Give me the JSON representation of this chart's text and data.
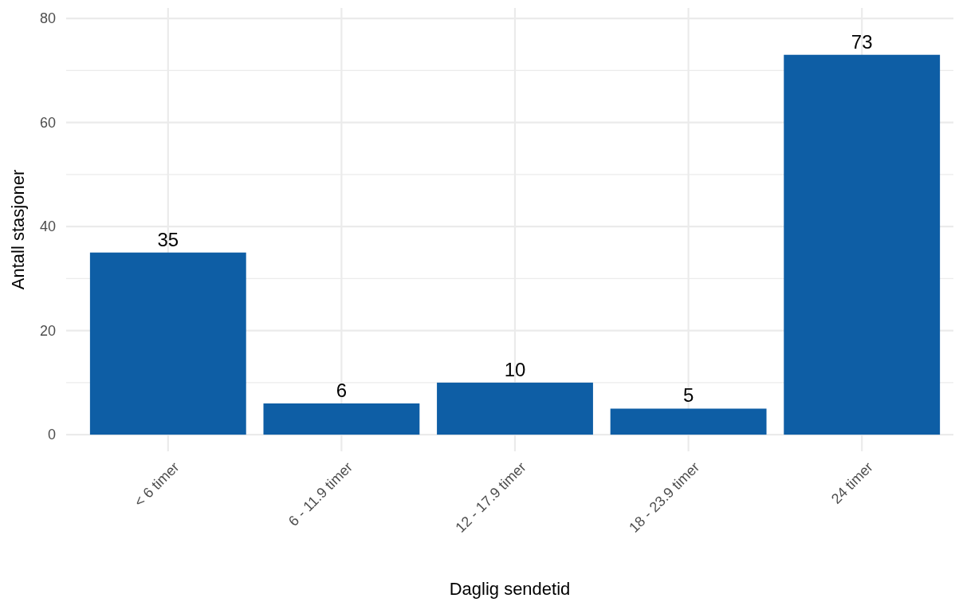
{
  "chart_data": {
    "type": "bar",
    "xlabel": "Daglig sendetid",
    "ylabel": "Antall stasjoner",
    "categories": [
      "< 6 timer",
      "6 - 11.9 timer",
      "12 - 17.9 timer",
      "18 - 23.9 timer",
      "24 timer"
    ],
    "values": [
      35,
      6,
      10,
      5,
      73
    ],
    "color": "#0e5ea5",
    "ylim": [
      -3.2,
      82
    ],
    "yticks": [
      0,
      20,
      40,
      60,
      80
    ],
    "grid": true,
    "data_labels": true
  }
}
